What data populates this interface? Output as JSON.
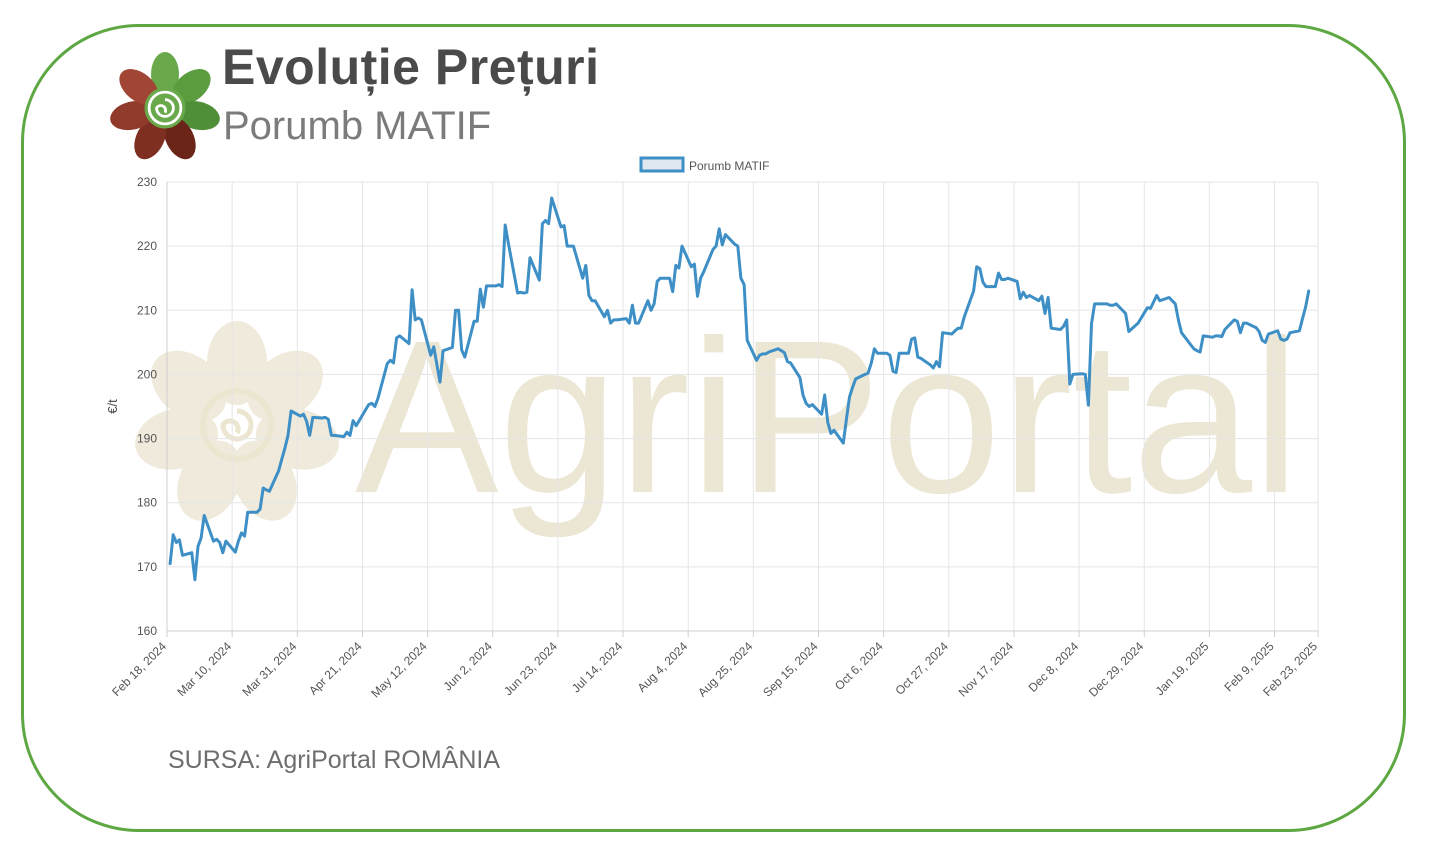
{
  "header": {
    "title": "Evoluție Prețuri",
    "subtitle": "Porumb MATIF",
    "logo_icon": "agriportal-flower-logo-icon"
  },
  "watermark": {
    "text": "AgriPortal"
  },
  "footer": {
    "source": "SURSA: AgriPortal ROMÂNIA"
  },
  "colors": {
    "frame": "#5ea843",
    "series_line": "#3d8fc6",
    "legend_fill": "#dfe7f0",
    "watermark": "#ece7d4",
    "grid": "#e5e5e5"
  },
  "chart_data": {
    "type": "line",
    "title": "",
    "xlabel": "",
    "ylabel": "€/t",
    "ylim": [
      160,
      230
    ],
    "yticks": [
      160,
      170,
      180,
      190,
      200,
      210,
      220,
      230
    ],
    "grid": true,
    "legend_position": "top-center",
    "x_tick_labels": [
      "Feb 18, 2024",
      "Mar 10, 2024",
      "Mar 31, 2024",
      "Apr 21, 2024",
      "May 12, 2024",
      "Jun 2, 2024",
      "Jun 23, 2024",
      "Jul 14, 2024",
      "Aug 4, 2024",
      "Aug 25, 2024",
      "Sep 15, 2024",
      "Oct 6, 2024",
      "Oct 27, 2024",
      "Nov 17, 2024",
      "Dec 8, 2024",
      "Dec 29, 2024",
      "Jan 19, 2025",
      "Feb 9, 2025",
      "Feb 23, 2025"
    ],
    "x_tick_dates": [
      "2024-02-18",
      "2024-03-10",
      "2024-03-31",
      "2024-04-21",
      "2024-05-12",
      "2024-06-02",
      "2024-06-23",
      "2024-07-14",
      "2024-08-04",
      "2024-08-25",
      "2024-09-15",
      "2024-10-06",
      "2024-10-27",
      "2024-11-17",
      "2024-12-08",
      "2024-12-29",
      "2025-01-19",
      "2025-02-09",
      "2025-02-23"
    ],
    "series": [
      {
        "name": "Porumb MATIF",
        "x": [
          "2024-02-19",
          "2024-02-20",
          "2024-02-21",
          "2024-02-22",
          "2024-02-23",
          "2024-02-26",
          "2024-02-27",
          "2024-02-28",
          "2024-02-29",
          "2024-03-01",
          "2024-03-04",
          "2024-03-05",
          "2024-03-06",
          "2024-03-07",
          "2024-03-08",
          "2024-03-11",
          "2024-03-12",
          "2024-03-13",
          "2024-03-14",
          "2024-03-15",
          "2024-03-18",
          "2024-03-19",
          "2024-03-20",
          "2024-03-21",
          "2024-03-22",
          "2024-03-25",
          "2024-03-26",
          "2024-03-27",
          "2024-03-28",
          "2024-03-29",
          "2024-04-01",
          "2024-04-02",
          "2024-04-03",
          "2024-04-04",
          "2024-04-05",
          "2024-04-08",
          "2024-04-09",
          "2024-04-10",
          "2024-04-11",
          "2024-04-12",
          "2024-04-15",
          "2024-04-16",
          "2024-04-17",
          "2024-04-18",
          "2024-04-19",
          "2024-04-22",
          "2024-04-23",
          "2024-04-24",
          "2024-04-25",
          "2024-04-26",
          "2024-04-29",
          "2024-04-30",
          "2024-05-01",
          "2024-05-02",
          "2024-05-03",
          "2024-05-06",
          "2024-05-07",
          "2024-05-08",
          "2024-05-09",
          "2024-05-10",
          "2024-05-13",
          "2024-05-14",
          "2024-05-15",
          "2024-05-16",
          "2024-05-17",
          "2024-05-20",
          "2024-05-21",
          "2024-05-22",
          "2024-05-23",
          "2024-05-24",
          "2024-05-27",
          "2024-05-28",
          "2024-05-29",
          "2024-05-30",
          "2024-05-31",
          "2024-06-03",
          "2024-06-04",
          "2024-06-05",
          "2024-06-06",
          "2024-06-07",
          "2024-06-10",
          "2024-06-11",
          "2024-06-12",
          "2024-06-13",
          "2024-06-14",
          "2024-06-17",
          "2024-06-18",
          "2024-06-19",
          "2024-06-20",
          "2024-06-21",
          "2024-06-24",
          "2024-06-25",
          "2024-06-26",
          "2024-06-27",
          "2024-06-28",
          "2024-07-01",
          "2024-07-02",
          "2024-07-03",
          "2024-07-04",
          "2024-07-05",
          "2024-07-08",
          "2024-07-09",
          "2024-07-10",
          "2024-07-11",
          "2024-07-12",
          "2024-07-15",
          "2024-07-16",
          "2024-07-17",
          "2024-07-18",
          "2024-07-19",
          "2024-07-22",
          "2024-07-23",
          "2024-07-24",
          "2024-07-25",
          "2024-07-26",
          "2024-07-29",
          "2024-07-30",
          "2024-07-31",
          "2024-08-01",
          "2024-08-02",
          "2024-08-05",
          "2024-08-06",
          "2024-08-07",
          "2024-08-08",
          "2024-08-09",
          "2024-08-12",
          "2024-08-13",
          "2024-08-14",
          "2024-08-15",
          "2024-08-16",
          "2024-08-19",
          "2024-08-20",
          "2024-08-21",
          "2024-08-22",
          "2024-08-23",
          "2024-08-26",
          "2024-08-27",
          "2024-08-28",
          "2024-08-29",
          "2024-08-30",
          "2024-09-02",
          "2024-09-03",
          "2024-09-04",
          "2024-09-05",
          "2024-09-06",
          "2024-09-09",
          "2024-09-10",
          "2024-09-11",
          "2024-09-12",
          "2024-09-13",
          "2024-09-16",
          "2024-09-17",
          "2024-09-18",
          "2024-09-19",
          "2024-09-20",
          "2024-09-23",
          "2024-09-24",
          "2024-09-25",
          "2024-09-26",
          "2024-09-27",
          "2024-09-30",
          "2024-10-01",
          "2024-10-02",
          "2024-10-03",
          "2024-10-04",
          "2024-10-07",
          "2024-10-08",
          "2024-10-09",
          "2024-10-10",
          "2024-10-11",
          "2024-10-14",
          "2024-10-15",
          "2024-10-16",
          "2024-10-17",
          "2024-10-18",
          "2024-10-21",
          "2024-10-22",
          "2024-10-23",
          "2024-10-24",
          "2024-10-25",
          "2024-10-28",
          "2024-10-29",
          "2024-10-30",
          "2024-10-31",
          "2024-11-01",
          "2024-11-04",
          "2024-11-05",
          "2024-11-06",
          "2024-11-07",
          "2024-11-08",
          "2024-11-11",
          "2024-11-12",
          "2024-11-13",
          "2024-11-14",
          "2024-11-15",
          "2024-11-18",
          "2024-11-19",
          "2024-11-20",
          "2024-11-21",
          "2024-11-22",
          "2024-11-25",
          "2024-11-26",
          "2024-11-27",
          "2024-11-28",
          "2024-11-29",
          "2024-12-02",
          "2024-12-03",
          "2024-12-04",
          "2024-12-05",
          "2024-12-06",
          "2024-12-09",
          "2024-12-10",
          "2024-12-11",
          "2024-12-12",
          "2024-12-13",
          "2024-12-16",
          "2024-12-17",
          "2024-12-18",
          "2024-12-19",
          "2024-12-20",
          "2024-12-23",
          "2024-12-24",
          "2024-12-27",
          "2024-12-30",
          "2024-12-31",
          "2025-01-02",
          "2025-01-03",
          "2025-01-06",
          "2025-01-07",
          "2025-01-08",
          "2025-01-09",
          "2025-01-10",
          "2025-01-13",
          "2025-01-14",
          "2025-01-15",
          "2025-01-16",
          "2025-01-17",
          "2025-01-20",
          "2025-01-21",
          "2025-01-22",
          "2025-01-23",
          "2025-01-24",
          "2025-01-27",
          "2025-01-28",
          "2025-01-29",
          "2025-01-30",
          "2025-01-31",
          "2025-02-03",
          "2025-02-04",
          "2025-02-05",
          "2025-02-06",
          "2025-02-07",
          "2025-02-10",
          "2025-02-11",
          "2025-02-12",
          "2025-02-13",
          "2025-02-14",
          "2025-02-17",
          "2025-02-18",
          "2025-02-19",
          "2025-02-20"
        ],
        "values": [
          170.5,
          175,
          173.8,
          174.2,
          171.8,
          172.2,
          168,
          173.2,
          174.5,
          178,
          174,
          174.3,
          173.8,
          172.2,
          174,
          172.3,
          174,
          175.3,
          174.8,
          178.5,
          178.5,
          179,
          182.3,
          182,
          181.8,
          185,
          186.8,
          188.5,
          190.5,
          194.3,
          193.5,
          193.8,
          192.7,
          190.5,
          193.3,
          193.2,
          193.3,
          193,
          190.5,
          190.5,
          190.3,
          191,
          190.5,
          192.8,
          192,
          194.5,
          195.3,
          195.5,
          195,
          196.3,
          201.7,
          202.2,
          201.8,
          205.7,
          206,
          204.8,
          213.2,
          208.5,
          208.8,
          208.5,
          203,
          204.3,
          201.5,
          198.8,
          203.7,
          204.2,
          210,
          210,
          203.8,
          202.7,
          208.3,
          208.3,
          213.3,
          210.5,
          213.8,
          213.8,
          214,
          213.7,
          223.3,
          220.5,
          212.7,
          212.8,
          212.7,
          212.8,
          218.2,
          214.7,
          223.5,
          224,
          223.5,
          227.5,
          223,
          223.2,
          220,
          220,
          220,
          215,
          217,
          212.3,
          211.5,
          211.5,
          209,
          210,
          208,
          208.5,
          208.5,
          208.7,
          208,
          210.8,
          208,
          208,
          211.5,
          210,
          211,
          214.5,
          215,
          215,
          212.9,
          217,
          216.6,
          220,
          216.8,
          217.2,
          212.2,
          215,
          216,
          219.5,
          220,
          222.7,
          220.2,
          221.8,
          220.3,
          220,
          215,
          214,
          205.3,
          202.2,
          203,
          203.2,
          203.2,
          203.5,
          204,
          203.7,
          203.4,
          202,
          201.8,
          199.5,
          196.8,
          195.5,
          195,
          195.3,
          193.8,
          196.8,
          192.5,
          190.8,
          191.3,
          189.3,
          193,
          196.5,
          198,
          199.3,
          200,
          200.2,
          201.8,
          204,
          203.3,
          203.3,
          203,
          200.5,
          200.3,
          203.3,
          203.3,
          205.5,
          205.7,
          202.7,
          202.5,
          201.5,
          201,
          202,
          201.2,
          206.5,
          206.3,
          206.8,
          207.2,
          207.2,
          209,
          213,
          216.8,
          216.5,
          214.4,
          213.7,
          213.7,
          215.8,
          214.8,
          214.8,
          215,
          214.5,
          211.8,
          212.8,
          212,
          212.3,
          211.5,
          212.2,
          209.5,
          212,
          207.2,
          207,
          207.5,
          208.5,
          198.5,
          200,
          200.1,
          200,
          195.2,
          207.9,
          211,
          211,
          211,
          210.8,
          210.8,
          211,
          209.5,
          206.7,
          208,
          210.4,
          210.3,
          212.3,
          211.5,
          212,
          211.5,
          211,
          208.5,
          206.5,
          204.6,
          204,
          203.7,
          203.5,
          206,
          205.8,
          206,
          206,
          205.9,
          207,
          208.5,
          208.3,
          206.5,
          208,
          208,
          207.3,
          206.7,
          205.3,
          205,
          206.3,
          206.8,
          205.5,
          205.3,
          205.5,
          206.5,
          206.8,
          208.7,
          210.5,
          213
        ],
        "values_tail_note": ""
      }
    ]
  }
}
